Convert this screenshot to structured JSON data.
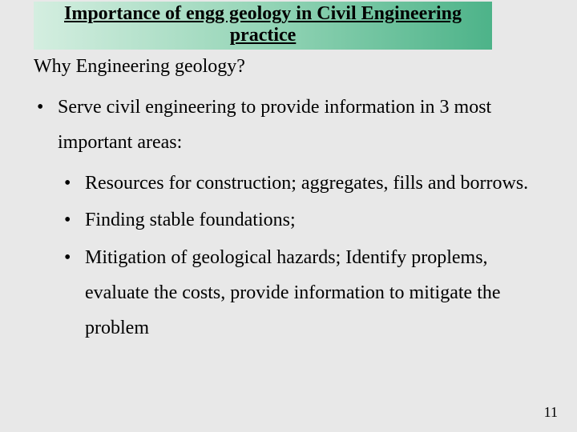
{
  "title": {
    "line1": "Importance of engg geology in Civil Engineering",
    "line2": "practice"
  },
  "subheading": "Why Engineering geology?",
  "main_bullet": "Serve civil engineering to provide information in  3 most important areas:",
  "sub_bullets": [
    "Resources for construction; aggregates, fills and borrows.",
    "Finding stable foundations;",
    "Mitigation of geological hazards; Identify proplems, evaluate the costs, provide information to mitigate the problem"
  ],
  "page_number": "11",
  "colors": {
    "background": "#e8e8e8",
    "title_gradient_start": "#d4eee0",
    "title_gradient_mid": "#95d5b7",
    "title_gradient_end": "#4db389",
    "text": "#000000"
  },
  "typography": {
    "title_fontsize": 24,
    "body_fontsize": 24,
    "pagenum_fontsize": 18,
    "font_family": "Times New Roman"
  }
}
